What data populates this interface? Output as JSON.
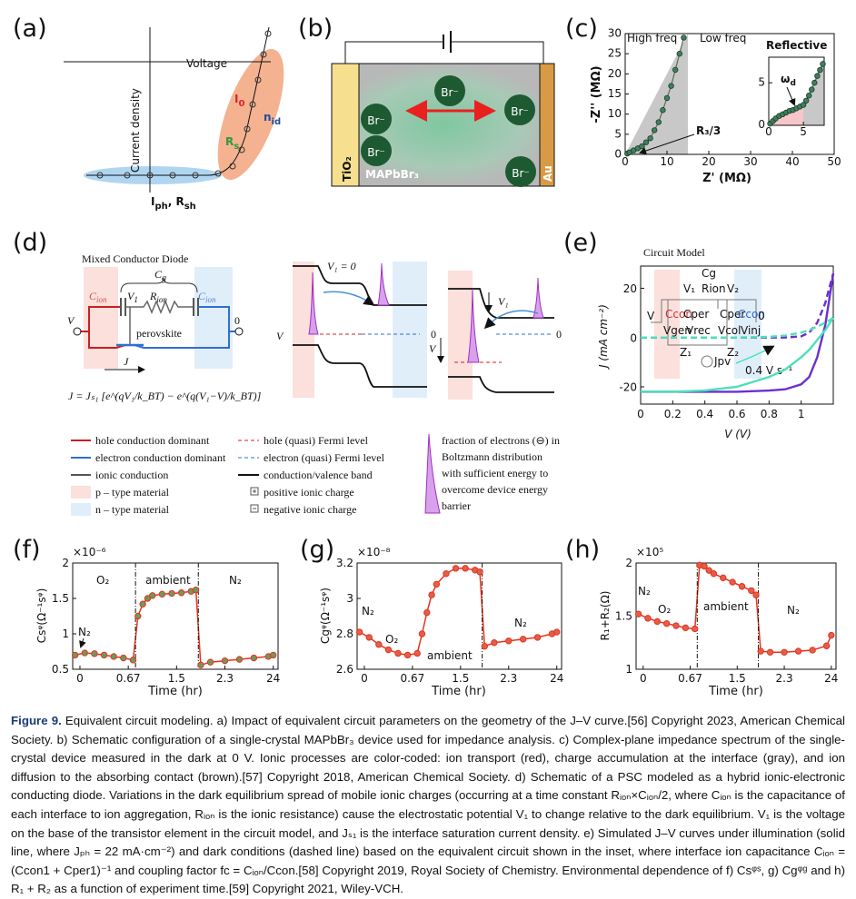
{
  "panels": {
    "labels": [
      "(a)",
      "(b)",
      "(c)",
      "(d)",
      "(e)",
      "(f)",
      "(g)",
      "(h)"
    ],
    "a": {
      "voltage": "Voltage",
      "current": "Current density",
      "i0": [
        "I",
        "0"
      ],
      "nid": [
        "n",
        "id"
      ],
      "rs": [
        "R",
        "s"
      ],
      "iph": [
        "I",
        "ph",
        ",  R",
        "sh"
      ]
    },
    "b": {
      "br": [
        "Br⁻",
        "Br⁻",
        "Br⁻",
        "Br⁻",
        "Br⁻"
      ],
      "tio2": "TiO₂",
      "mapbbr3": "MAPbBr₃",
      "au": "Au"
    },
    "c": {
      "high": "High freq",
      "low": "Low freq",
      "r3": "R₃/3",
      "reflective": "Reflective",
      "omega": [
        "ω",
        "d"
      ]
    },
    "d": {
      "title": "Mixed Conductor Diode",
      "cg": [
        "C",
        "g"
      ],
      "cion_left": [
        "C",
        "ion"
      ],
      "v1": [
        "V",
        "1"
      ],
      "rion": [
        "R",
        "ion"
      ],
      "cion_right": [
        "C",
        "ion"
      ],
      "v": "V",
      "zero": "0",
      "perovskite": "perovskite",
      "j": "J",
      "equation": "J = Jₛ₁ [e^(qV₁/k_BT) − e^(q(V₁−V)/k_BT)]",
      "band1": {
        "v1": "V₁ = 0",
        "v": "V",
        "zero": "0"
      },
      "band2": {
        "v1": "V₁",
        "v": "V",
        "zero": "0"
      },
      "legend": [
        "hole conduction dominant",
        "electron conduction dominant",
        "ionic conduction",
        "p – type material",
        "n – type material",
        "hole (quasi) Fermi level",
        "electron (quasi) Fermi level",
        "conduction/valence band",
        "positive ionic charge",
        "negative ionic charge"
      ],
      "fraction": [
        "fraction of electrons (⊖) in",
        "Boltzmann distribution",
        "with sufficient energy to",
        "overcome device energy",
        "barrier"
      ]
    },
    "e": {
      "title": "Circuit Model",
      "rate": "0.4 V s⁻¹",
      "inset": [
        "Cg",
        "V₁",
        "Rion",
        "V₂",
        "Ccon",
        "Cper",
        "Cper",
        "Ccon",
        "V",
        "0",
        "Vgen",
        "Vrec",
        "Vcol",
        "Vinj",
        "Z₁",
        "Z₂",
        "Jpv"
      ]
    },
    "f": {
      "regions": [
        "O₂",
        "ambient",
        "N₂"
      ],
      "start": "N₂"
    },
    "g": {
      "regions": [
        "N₂",
        "O₂",
        "ambient",
        "N₂"
      ]
    },
    "h": {
      "regions": [
        "N₂",
        "O₂",
        "ambient",
        "N₂"
      ]
    }
  },
  "chart_data": [
    {
      "type": "scatter",
      "xlabel": "Z' (MΩ)",
      "ylabel": "-Z'' (MΩ)",
      "xlim": [
        0,
        50
      ],
      "ylim": [
        0,
        30
      ],
      "xticks": [
        0,
        10,
        20,
        30,
        40,
        50
      ],
      "yticks": [
        0,
        5,
        10,
        15,
        20,
        25,
        30
      ],
      "x": [
        0.5,
        1,
        2,
        3,
        4,
        5,
        6,
        7,
        8,
        9,
        10,
        11,
        12,
        13,
        14
      ],
      "series": [
        {
          "color": "#3f7f5f",
          "values": [
            0.2,
            0.5,
            1,
            1.5,
            2,
            3,
            4,
            6,
            8,
            11,
            14,
            17,
            21,
            25,
            29
          ]
        }
      ]
    },
    {
      "type": "scatter",
      "xlim": [
        0,
        8
      ],
      "ylim": [
        0,
        8
      ],
      "xticks": [
        0,
        5
      ],
      "yticks": [
        0,
        5
      ],
      "x": [
        0.2,
        0.6,
        1,
        1.5,
        2,
        2.5,
        3,
        3.5,
        4,
        4.5,
        5,
        5.4,
        5.8,
        6.2,
        6.6,
        7,
        7.4,
        7.8
      ],
      "series": [
        {
          "color": "#3f7f5f",
          "values": [
            0.2,
            0.5,
            0.8,
            1.1,
            1.3,
            1.5,
            1.7,
            1.8,
            2,
            2.2,
            2.4,
            2.9,
            3.5,
            4.2,
            5,
            5.8,
            6.5,
            7.2
          ]
        }
      ]
    },
    {
      "type": "line",
      "xlabel": "V (V)",
      "ylabel": "J (mA cm⁻²)",
      "xlim": [
        0,
        1.2
      ],
      "ylim": [
        -27,
        29
      ],
      "xticks": [
        0,
        0.2,
        0.4,
        0.6,
        0.8,
        1
      ],
      "yticks": [
        -20,
        0,
        20
      ],
      "x": [
        0,
        0.2,
        0.4,
        0.6,
        0.8,
        0.9,
        1.0,
        1.05,
        1.1,
        1.15,
        1.2
      ],
      "series": [
        {
          "color": "#6a2fd1",
          "style": "solid",
          "values": [
            -22,
            -22,
            -22,
            -22,
            -21.5,
            -21,
            -19,
            -16,
            -8,
            5,
            26
          ]
        },
        {
          "color": "#6a2fd1",
          "style": "dashed",
          "values": [
            0,
            0,
            0,
            0,
            0,
            0,
            0.5,
            2,
            6,
            14,
            26
          ]
        },
        {
          "color": "#4de0b8",
          "style": "solid",
          "values": [
            -22,
            -22,
            -21.5,
            -20,
            -16,
            -13,
            -8,
            -5,
            -1,
            3,
            8
          ]
        },
        {
          "color": "#4de0b8",
          "style": "dashed",
          "values": [
            0,
            0,
            0,
            0,
            0.3,
            0.8,
            2,
            3,
            4.5,
            6,
            8
          ]
        }
      ]
    },
    {
      "type": "line",
      "xlabel": "Time (hr)",
      "ylabel": "Csᵠ(Ω⁻¹sᵠ)",
      "multiplier": "×10⁻⁶",
      "xlim": [
        -0.15,
        4.1
      ],
      "ylim": [
        0.5,
        2
      ],
      "xticks": [
        0,
        {
          "value": 1,
          "label": "0.67"
        },
        {
          "value": 2,
          "label": "1.5"
        },
        {
          "value": 3,
          "label": "2.3"
        },
        {
          "value": 4,
          "label": "24"
        }
      ],
      "yticks": [
        0.5,
        1,
        1.5,
        2
      ],
      "x": [
        -0.1,
        0.1,
        0.3,
        0.5,
        0.7,
        0.9,
        1.1,
        1.2,
        1.3,
        1.4,
        1.5,
        1.7,
        1.9,
        2.1,
        2.3,
        2.4,
        2.5,
        2.7,
        3.0,
        3.3,
        3.6,
        3.9,
        4.0
      ],
      "series": [
        {
          "color": "#e8321e",
          "marker_color": "#6b9a5b",
          "values": [
            0.7,
            0.73,
            0.72,
            0.7,
            0.68,
            0.66,
            0.63,
            1.25,
            1.42,
            1.5,
            1.54,
            1.56,
            1.57,
            1.58,
            1.6,
            1.62,
            0.56,
            0.6,
            0.62,
            0.64,
            0.66,
            0.68,
            0.7
          ]
        }
      ]
    },
    {
      "type": "line",
      "xlabel": "Time (hr)",
      "ylabel": "Cgᵠ(Ω⁻¹sᵠ)",
      "multiplier": "×10⁻⁸",
      "xlim": [
        -0.15,
        4.1
      ],
      "ylim": [
        2.6,
        3.2
      ],
      "xticks": [
        0,
        {
          "value": 1,
          "label": "0.67"
        },
        {
          "value": 2,
          "label": "1.5"
        },
        {
          "value": 3,
          "label": "2.3"
        },
        {
          "value": 4,
          "label": "24"
        }
      ],
      "yticks": [
        2.6,
        2.8,
        3,
        3.2
      ],
      "x": [
        -0.1,
        0.1,
        0.3,
        0.5,
        0.7,
        0.9,
        1.1,
        1.2,
        1.3,
        1.4,
        1.5,
        1.7,
        1.9,
        2.1,
        2.3,
        2.4,
        2.5,
        2.7,
        3.0,
        3.3,
        3.6,
        3.9,
        4.0
      ],
      "series": [
        {
          "color": "#e8321e",
          "marker_color": "#e0604a",
          "values": [
            2.81,
            2.78,
            2.74,
            2.71,
            2.69,
            2.68,
            2.69,
            2.8,
            2.92,
            3.02,
            3.08,
            3.14,
            3.17,
            3.17,
            3.16,
            3.15,
            2.73,
            2.75,
            2.76,
            2.77,
            2.78,
            2.8,
            2.81
          ]
        }
      ]
    },
    {
      "type": "line",
      "xlabel": "Time (hr)",
      "ylabel": "R₁+R₂(Ω)",
      "multiplier": "×10⁵",
      "xlim": [
        -0.15,
        4.1
      ],
      "ylim": [
        1,
        2
      ],
      "xticks": [
        0,
        {
          "value": 1,
          "label": "0.67"
        },
        {
          "value": 2,
          "label": "1.5"
        },
        {
          "value": 3,
          "label": "2.3"
        },
        {
          "value": 4,
          "label": "24"
        }
      ],
      "yticks": [
        1,
        1.5,
        2
      ],
      "x": [
        -0.1,
        0.1,
        0.3,
        0.5,
        0.7,
        0.9,
        1.1,
        1.2,
        1.3,
        1.4,
        1.5,
        1.7,
        1.9,
        2.1,
        2.3,
        2.4,
        2.5,
        2.7,
        3.0,
        3.3,
        3.6,
        3.9,
        4.0
      ],
      "series": [
        {
          "color": "#e8321e",
          "marker_color": "#e0604a",
          "values": [
            1.52,
            1.48,
            1.45,
            1.43,
            1.41,
            1.39,
            1.38,
            1.98,
            1.97,
            1.93,
            1.9,
            1.86,
            1.82,
            1.78,
            1.74,
            1.7,
            1.17,
            1.16,
            1.16,
            1.17,
            1.18,
            1.22,
            1.32
          ]
        }
      ]
    }
  ],
  "caption": {
    "label": "Figure 9.",
    "text": " Equivalent circuit modeling. a) Impact of equivalent circuit parameters on the geometry of the J–V curve.[56] Copyright 2023, American Chemical Society. b) Schematic configuration of a single-crystal MAPbBr₃ device used for impedance analysis. c) Complex-plane impedance spectrum of the single-crystal device measured in the dark at 0 V. Ionic processes are color-coded: ion transport (red), charge accumulation at the interface (gray), and ion diffusion to the absorbing contact (brown).[57] Copyright 2018, American Chemical Society. d) Schematic of a PSC modeled as a hybrid ionic-electronic conducting diode. Variations in the dark equilibrium spread of mobile ionic charges (occurring at a time constant Rᵢₒₙ×Cᵢₒₙ/2, where Cᵢₒₙ is the capacitance of each interface to ion aggregation, Rᵢₒₙ is the ionic resistance) cause the electrostatic potential V₁ to change relative to the dark equilibrium. V₁ is the voltage on the base of the transistor element in the circuit model, and Jₛ₁ is the interface saturation current density. e) Simulated J–V curves under illumination (solid line, where Jₚₕ = 22 mA·cm⁻²) and dark conditions (dashed line) based on the equivalent circuit shown in the inset, where interface ion capacitance Cᵢₒₙ = (Ccon1 + Cper1)⁻¹ and coupling factor fc = Cᵢₒₙ/Ccon.[58] Copyright 2019, Royal Society of Chemistry. Environmental dependence of f) Csᵠˢ, g) Cgᵠᵍ and h) R₁ + R₂ as a function of experiment time.[59] Copyright 2021, Wiley-VCH."
  }
}
